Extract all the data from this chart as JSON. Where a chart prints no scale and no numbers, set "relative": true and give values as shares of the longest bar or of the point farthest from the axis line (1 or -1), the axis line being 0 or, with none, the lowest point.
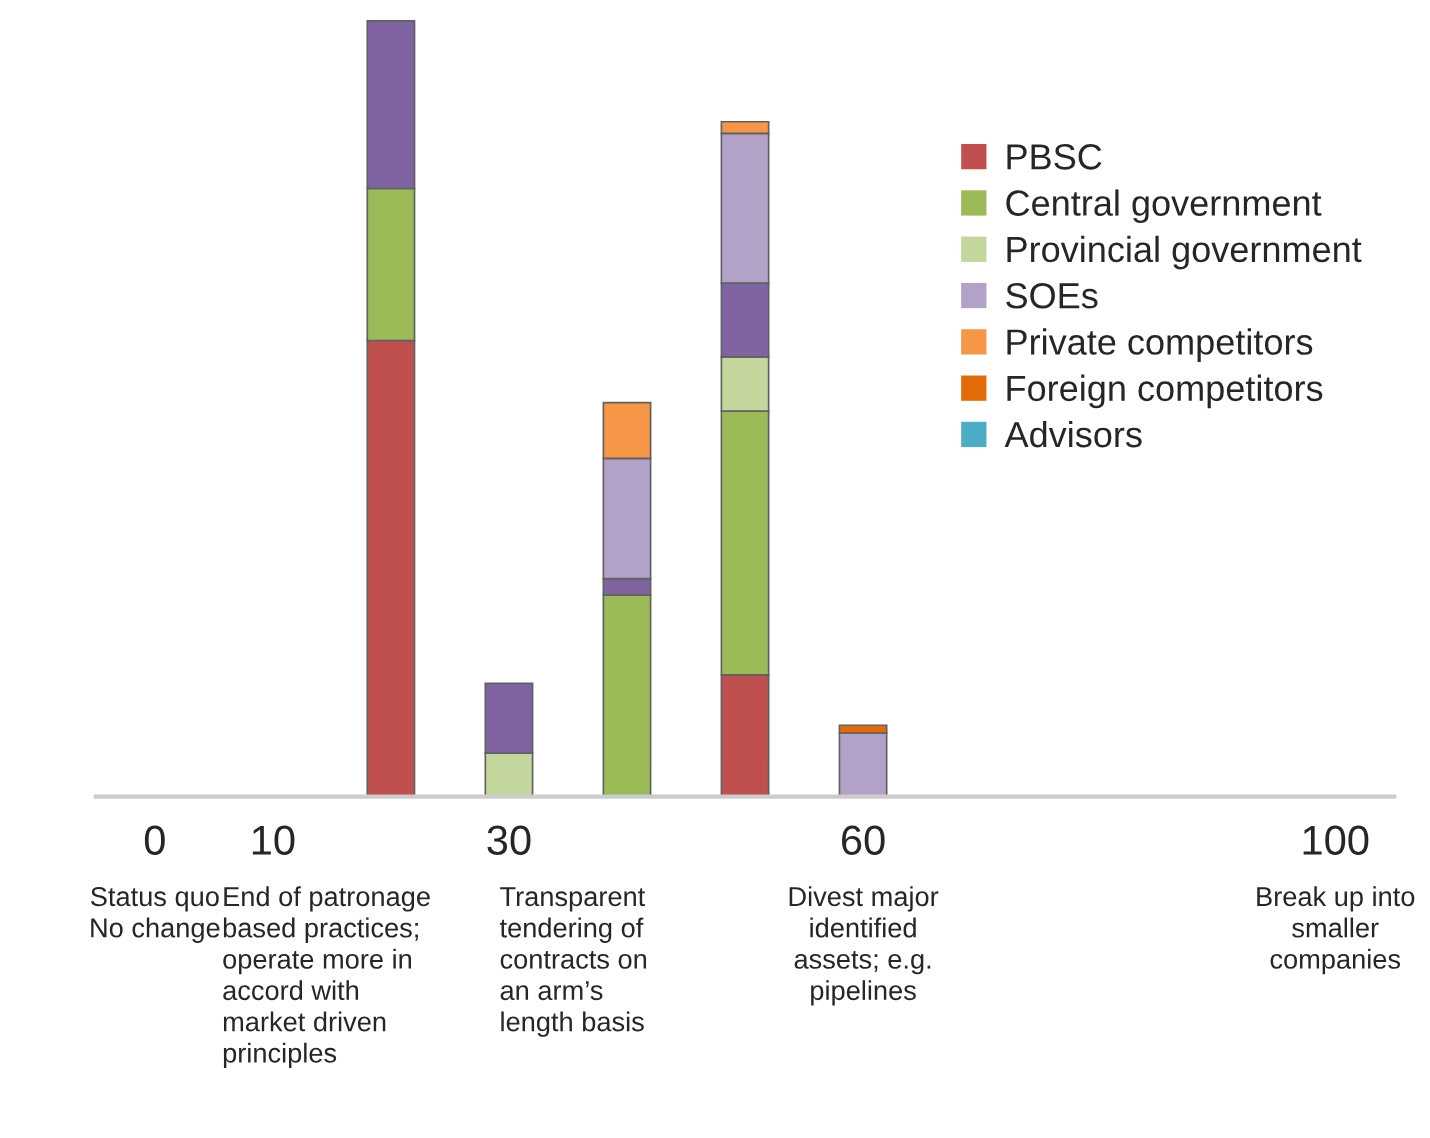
{
  "chart_data": {
    "type": "bar",
    "stacked": true,
    "relative": true,
    "x": [
      20,
      30,
      40,
      50,
      60
    ],
    "xlim": [
      -5,
      105
    ],
    "xticks": [
      0,
      10,
      30,
      60,
      100
    ],
    "tick_labels": "x",
    "grid": false,
    "legend": "top right",
    "series": [
      {
        "name": "PBSC",
        "color": "#c0504d",
        "values": [
          0.588,
          0,
          0,
          0.157,
          0
        ]
      },
      {
        "name": "Central government",
        "color": "#9bbb59",
        "values": [
          0.196,
          0,
          0.26,
          0.34,
          0
        ]
      },
      {
        "name": "Provincial government",
        "color": "#c3d69b",
        "values": [
          0,
          0.056,
          0,
          0.07,
          0
        ]
      },
      {
        "color": "#8064a2",
        "values": [
          0.216,
          0.09,
          0.021,
          0.095,
          0
        ]
      },
      {
        "name": "SOEs",
        "color": "#b3a2c7",
        "values": [
          0,
          0,
          0.155,
          0.193,
          0.082
        ]
      },
      {
        "name": "Private competitors",
        "color": "#f79646",
        "values": [
          0,
          0,
          0.072,
          0.015,
          0
        ]
      },
      {
        "name": "Foreign competitors",
        "color": "#e36c09",
        "values": [
          0,
          0,
          0,
          0,
          0.01
        ]
      },
      {
        "name": "Advisors",
        "color": "#4bacc6",
        "values": [
          0,
          0,
          0,
          0,
          0
        ]
      }
    ],
    "annotations": [
      "Status quo\nNo change",
      "End of patronage\nbased practices;\noperate more in\naccord with\nmarket driven\nprinciples",
      "Transparent\ntendering of\ncontracts on\nan arm’s\nlength basis",
      "Divest major\nidentified\nassets; e.g.\npipelines",
      "Break up into\nsmaller\ncompanies"
    ]
  }
}
